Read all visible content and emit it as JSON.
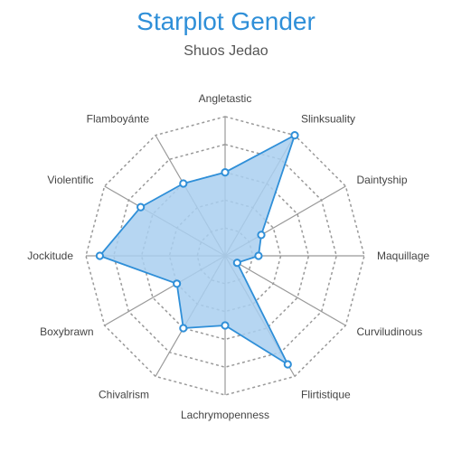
{
  "chart_data": {
    "type": "radar",
    "title": "Starplot Gender",
    "subtitle": "Shuos Jedao",
    "axes": [
      "Angletastic",
      "Slinksuality",
      "Daintyship",
      "Maquillage",
      "Curviludinous",
      "Flirtistique",
      "Lachrymopenness",
      "Chivalrism",
      "Boxybrawn",
      "Jockitude",
      "Violentific",
      "Flamboyánte"
    ],
    "values": [
      3.0,
      5.0,
      1.5,
      1.2,
      0.5,
      4.5,
      2.5,
      3.0,
      2.0,
      4.5,
      3.5,
      3.0
    ],
    "rmax": 5,
    "grid_levels": 5,
    "colors": {
      "line": "#2f8fd8",
      "fill": "#a9cff0",
      "grid": "#999999",
      "marker_fill": "#ffffff"
    }
  }
}
